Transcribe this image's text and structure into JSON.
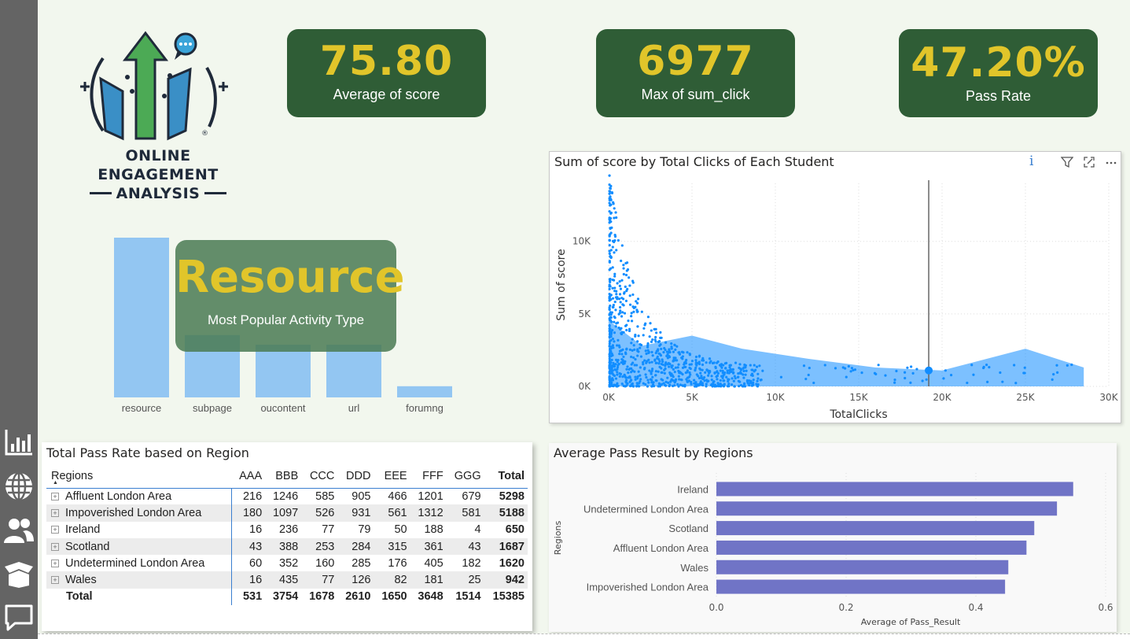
{
  "nav": {
    "icons": [
      "chart-icon",
      "globe-icon",
      "people-icon",
      "box-icon",
      "chat-icon"
    ]
  },
  "logo": {
    "line1": "ONLINE ENGAGEMENT",
    "line2": "ANALYSIS",
    "mark": "®"
  },
  "kpis": [
    {
      "value": "75.80",
      "label": "Average of score"
    },
    {
      "value": "6977",
      "label": "Max of sum_click"
    },
    {
      "value": "47.20%",
      "label": "Pass Rate"
    }
  ],
  "activity": {
    "headline": "Resource",
    "subtitle": "Most Popular Activity Type",
    "color": "#93c6f2",
    "chart_data": {
      "type": "bar",
      "categories": [
        "resource",
        "subpage",
        "oucontent",
        "url",
        "forumng"
      ],
      "values": [
        100,
        39,
        33,
        33,
        7
      ]
    }
  },
  "scatter": {
    "title": "Sum of score by Total Clicks of Each Student",
    "header_icons": [
      "info-icon",
      "filter-icon",
      "focus-mode-icon",
      "more-options-icon"
    ],
    "info_glyph": "i",
    "color": "#118dff",
    "chart_data": {
      "type": "scatter",
      "xlabel": "TotalClicks",
      "ylabel": "Sum of score",
      "xlim": [
        0,
        30000
      ],
      "ylim": [
        0,
        14000
      ],
      "xticks": [
        "0K",
        "5K",
        "10K",
        "15K",
        "20K",
        "25K",
        "30K"
      ],
      "yticks": [
        "0K",
        "5K",
        "10K"
      ],
      "reference_x": 19200,
      "highlight_point": {
        "x": 19200,
        "y": 1100
      },
      "points_description_x": [
        0,
        2000,
        5000,
        8000,
        12000,
        16000,
        20000,
        25000,
        28500
      ],
      "upper_envelope_y": [
        13000,
        8000,
        3500,
        2600,
        1900,
        1300,
        1100,
        2600,
        1300
      ]
    }
  },
  "pass_table": {
    "title": "Total Pass Rate based on Region",
    "columns": [
      "Regions",
      "AAA",
      "BBB",
      "CCC",
      "DDD",
      "EEE",
      "FFF",
      "GGG",
      "Total"
    ],
    "rows": [
      [
        "Affluent London Area",
        "216",
        "1246",
        "585",
        "905",
        "466",
        "1201",
        "679",
        "5298"
      ],
      [
        "Impoverished London Area",
        "180",
        "1097",
        "526",
        "931",
        "561",
        "1312",
        "581",
        "5188"
      ],
      [
        "Ireland",
        "16",
        "236",
        "77",
        "79",
        "50",
        "188",
        "4",
        "650"
      ],
      [
        "Scotland",
        "43",
        "388",
        "253",
        "284",
        "315",
        "361",
        "43",
        "1687"
      ],
      [
        "Undetermined London Area",
        "60",
        "352",
        "160",
        "285",
        "176",
        "405",
        "182",
        "1620"
      ],
      [
        "Wales",
        "16",
        "435",
        "77",
        "126",
        "82",
        "181",
        "25",
        "942"
      ]
    ],
    "total_row": [
      "Total",
      "531",
      "3754",
      "1678",
      "2610",
      "1650",
      "3648",
      "1514",
      "15385"
    ],
    "expand_glyph": "+",
    "sort_glyph": "▲"
  },
  "region_bars": {
    "title": "Average Pass Result by Regions",
    "color": "#7074c6",
    "chart_data": {
      "type": "bar",
      "orientation": "horizontal",
      "categories": [
        "Ireland",
        "Undetermined London Area",
        "Scotland",
        "Affluent London Area",
        "Wales",
        "Impoverished London Area"
      ],
      "values": [
        0.55,
        0.525,
        0.49,
        0.478,
        0.45,
        0.445
      ],
      "xlabel": "Average of Pass_Result",
      "ylabel": "Regions",
      "xlim": [
        0,
        0.6
      ],
      "xticks": [
        "0.0",
        "0.2",
        "0.4",
        "0.6"
      ]
    }
  }
}
